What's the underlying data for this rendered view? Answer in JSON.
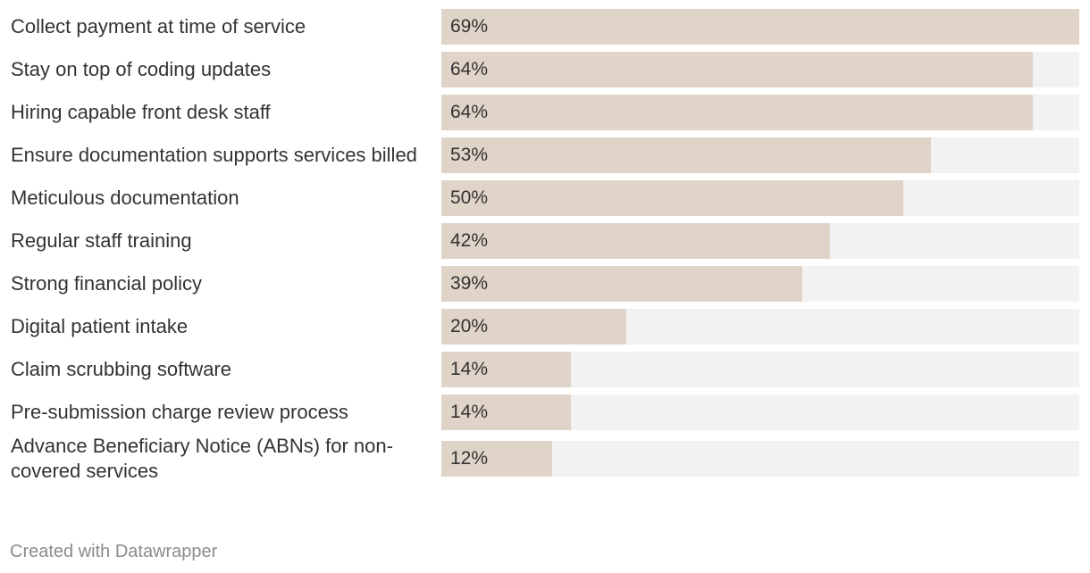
{
  "chart_data": {
    "type": "bar",
    "orientation": "horizontal",
    "categories": [
      "Collect payment at time of service",
      "Stay on top of coding updates",
      "Hiring capable front desk staff",
      "Ensure documentation supports services billed",
      "Meticulous documentation",
      "Regular staff training",
      "Strong financial policy",
      "Digital patient intake",
      "Claim scrubbing software",
      "Pre-submission charge review process",
      "Advance Beneficiary Notice (ABNs) for non-covered services"
    ],
    "values": [
      69,
      64,
      64,
      53,
      50,
      42,
      39,
      20,
      14,
      14,
      12
    ],
    "value_labels": [
      "69%",
      "64%",
      "64%",
      "53%",
      "50%",
      "42%",
      "39%",
      "20%",
      "14%",
      "14%",
      "12%"
    ],
    "xlim": [
      0,
      69
    ],
    "unit": "%",
    "title": "",
    "xlabel": "",
    "ylabel": "",
    "grid": false
  },
  "colors": {
    "bar": "#e0d4c8",
    "track": "#f2f2f2",
    "text": "#333333",
    "footer": "#8c8c8c"
  },
  "footer": {
    "credit": "Created with Datawrapper"
  }
}
